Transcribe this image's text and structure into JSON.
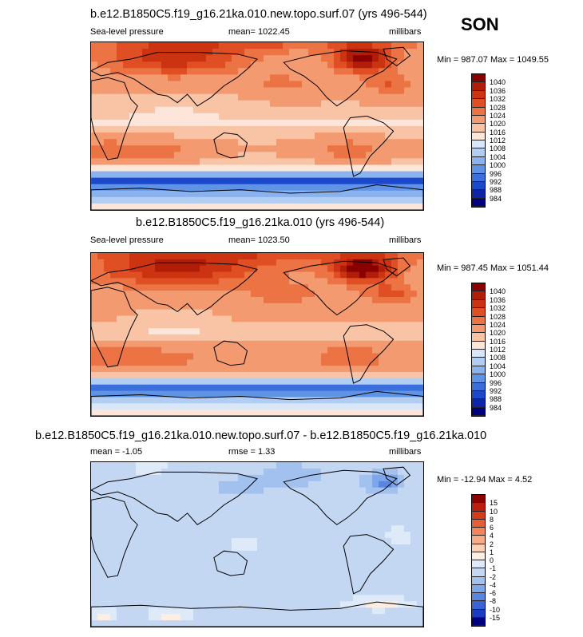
{
  "season": "SON",
  "chart_data": [
    {
      "type": "heatmap",
      "title": "b.e12.B1850C5.f19_g16.21ka.010.new.topo.surf.07 (yrs 496-544)",
      "variable": "Sea-level pressure",
      "mean_label": "mean= 1022.45",
      "units": "millibars",
      "minmax_label": "Min = 987.07 Max = 1049.55",
      "colorbar": {
        "levels": [
          "1040",
          "1036",
          "1032",
          "1028",
          "1024",
          "1020",
          "1016",
          "1012",
          "1008",
          "1004",
          "1000",
          "996",
          "992",
          "988",
          "984"
        ],
        "colors": [
          "#8b0000",
          "#b01d08",
          "#cc3311",
          "#df4f23",
          "#ec7343",
          "#f39a70",
          "#f9c4a6",
          "#fde6d9",
          "#d8e6f7",
          "#b2cdf2",
          "#8ab2ee",
          "#5f93e6",
          "#3b6fdc",
          "#1c49cc",
          "#0f25a8",
          "#000080"
        ]
      },
      "field": "slp_model"
    },
    {
      "type": "heatmap",
      "title": "b.e12.B1850C5.f19_g16.21ka.010 (yrs 496-544)",
      "variable": "Sea-level pressure",
      "mean_label": "mean= 1023.50",
      "units": "millibars",
      "minmax_label": "Min = 987.45 Max = 1051.44",
      "colorbar": {
        "levels": [
          "1040",
          "1036",
          "1032",
          "1028",
          "1024",
          "1020",
          "1016",
          "1012",
          "1008",
          "1004",
          "1000",
          "996",
          "992",
          "988",
          "984"
        ],
        "colors": [
          "#8b0000",
          "#b01d08",
          "#cc3311",
          "#df4f23",
          "#ec7343",
          "#f39a70",
          "#f9c4a6",
          "#fde6d9",
          "#d8e6f7",
          "#b2cdf2",
          "#8ab2ee",
          "#5f93e6",
          "#3b6fdc",
          "#1c49cc",
          "#0f25a8",
          "#000080"
        ]
      },
      "field": "slp_control"
    },
    {
      "type": "heatmap",
      "title": "b.e12.B1850C5.f19_g16.21ka.010.new.topo.surf.07 - b.e12.B1850C5.f19_g16.21ka.010",
      "mean_label": "mean =  -1.05",
      "rmse_label": "rmse =   1.33",
      "units": "millibars",
      "minmax_label": "Min = -12.94 Max =  4.52",
      "colorbar": {
        "levels": [
          "15",
          "10",
          "8",
          "6",
          "4",
          "2",
          "1",
          "0",
          "-1",
          "-2",
          "-4",
          "-6",
          "-8",
          "-10",
          "-15"
        ],
        "colors": [
          "#8b0000",
          "#bd1e0f",
          "#d83a1c",
          "#e85d35",
          "#f3845c",
          "#f8ab87",
          "#fbd0b8",
          "#fdeee3",
          "#dfeaf8",
          "#c3d7f3",
          "#a3c1ef",
          "#7ea6ea",
          "#5a86e2",
          "#3962d6",
          "#1b3cc2",
          "#000080"
        ]
      },
      "field": "slp_difference"
    }
  ]
}
